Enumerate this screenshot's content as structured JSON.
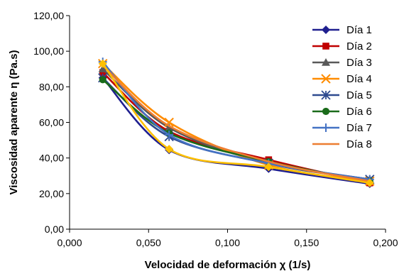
{
  "chart_data": {
    "type": "line",
    "title": "",
    "xlabel": "Velocidad de deformación χ (1/s)",
    "ylabel": "Viscosidad aparente η (Pa.s)",
    "xlim": [
      0,
      0.2
    ],
    "ylim": [
      0,
      120
    ],
    "x_ticks": [
      "0,000",
      "0,050",
      "0,100",
      "0,150",
      "0,200"
    ],
    "y_ticks": [
      "0,00",
      "20,00",
      "40,00",
      "60,00",
      "80,00",
      "100,00",
      "120,00"
    ],
    "grid": false,
    "legend_position": "top-right",
    "series": [
      {
        "name": "Día 1",
        "color": "#1f1f8f",
        "marker": "diamond",
        "x": [
          0.021,
          0.063,
          0.126,
          0.19
        ],
        "y": [
          85,
          44.5,
          34,
          25.5
        ]
      },
      {
        "name": "Día 2",
        "color": "#c00000",
        "marker": "square",
        "x": [
          0.021,
          0.063,
          0.126,
          0.19
        ],
        "y": [
          88,
          55,
          39,
          26
        ]
      },
      {
        "name": "Día 3",
        "color": "#595959",
        "marker": "triangle",
        "x": [
          0.021,
          0.063,
          0.126,
          0.19
        ],
        "y": [
          90,
          57,
          37,
          28
        ]
      },
      {
        "name": "Día 4",
        "color": "#ff8c00",
        "marker": "x",
        "x": [
          0.021,
          0.063,
          0.126,
          0.19
        ],
        "y": [
          93,
          60,
          36,
          27
        ]
      },
      {
        "name": "Día 5",
        "color": "#2e4a8f",
        "marker": "star",
        "x": [
          0.021,
          0.063,
          0.126,
          0.19
        ],
        "y": [
          85,
          52,
          37,
          28
        ]
      },
      {
        "name": "Día 6",
        "color": "#1a6b1a",
        "marker": "circle",
        "x": [
          0.021,
          0.063,
          0.126,
          0.19
        ],
        "y": [
          84,
          54,
          38,
          27
        ]
      },
      {
        "name": "Día 7",
        "color": "#4472c4",
        "marker": "plus",
        "x": [
          0.021,
          0.063,
          0.126,
          0.19
        ],
        "y": [
          94,
          53,
          37,
          28
        ]
      },
      {
        "name": "Día 8",
        "color": "#ed7d31",
        "marker": "none",
        "x": [
          0.021,
          0.063,
          0.126,
          0.19
        ],
        "y": [
          92,
          58,
          38,
          27
        ]
      }
    ],
    "extra_line": {
      "color": "#ffc000",
      "marker": "diamond",
      "x": [
        0.021,
        0.063,
        0.126,
        0.19
      ],
      "y": [
        93,
        45,
        35,
        26
      ]
    }
  }
}
